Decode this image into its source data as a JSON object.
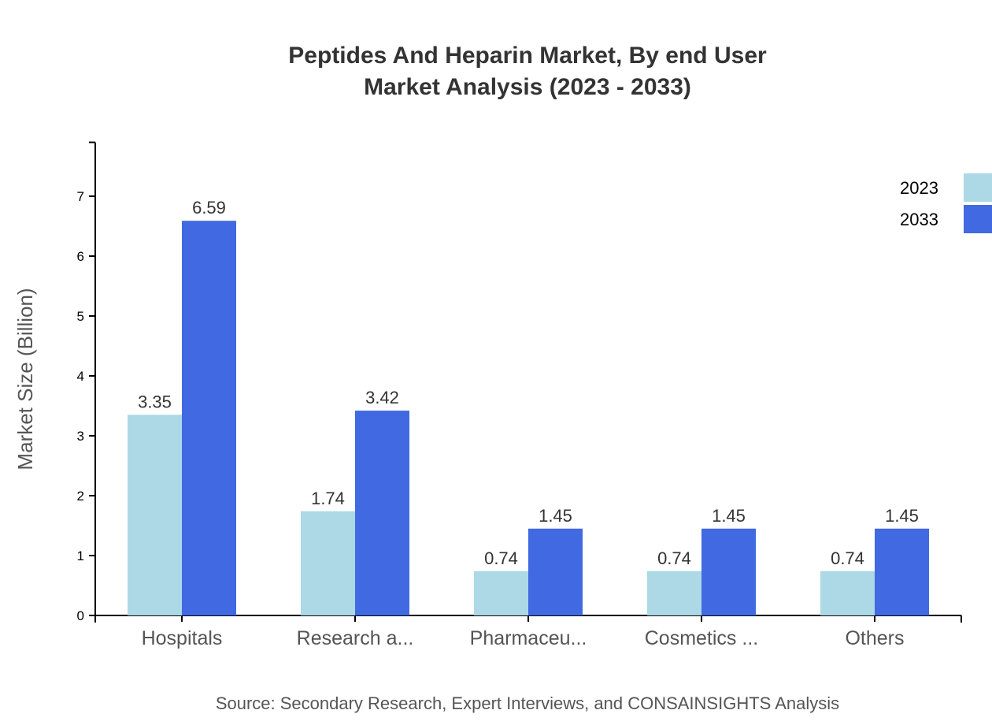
{
  "chart_data": {
    "type": "bar",
    "title": "Peptides And Heparin Market, By end User",
    "subtitle": "Market Analysis (2023 - 2033)",
    "xlabel": "",
    "ylabel": "Market Size (Billion)",
    "ylim": [
      0,
      7.9
    ],
    "yticks": [
      0,
      1,
      2,
      3,
      4,
      5,
      6,
      7
    ],
    "grid": false,
    "legend_position": "top-right",
    "categories": [
      "Hospitals",
      "Research a...",
      "Pharmaceu...",
      "Cosmetics ...",
      "Others"
    ],
    "series": [
      {
        "name": "2023",
        "color": "#add8e6",
        "values": [
          3.35,
          1.74,
          0.74,
          0.74,
          0.74
        ]
      },
      {
        "name": "2033",
        "color": "#4169e1",
        "values": [
          6.59,
          3.42,
          1.45,
          1.45,
          1.45
        ]
      }
    ],
    "source": "Source: Secondary Research, Expert Interviews, and CONSAINSIGHTS Analysis"
  }
}
